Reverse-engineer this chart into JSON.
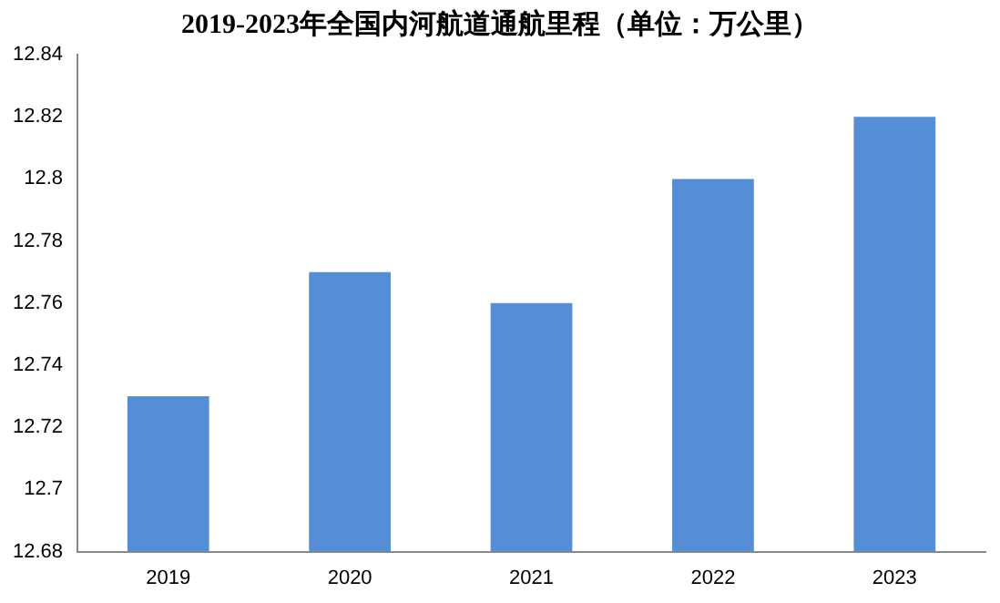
{
  "chart_data": {
    "type": "bar",
    "title": "2019-2023年全国内河航道通航里程（单位：万公里）",
    "categories": [
      "2019",
      "2020",
      "2021",
      "2022",
      "2023"
    ],
    "values": [
      12.73,
      12.77,
      12.76,
      12.8,
      12.82
    ],
    "color": "#558ed5",
    "ylim": [
      12.68,
      12.84
    ],
    "yticks": [
      12.68,
      12.7,
      12.72,
      12.74,
      12.76,
      12.78,
      12.8,
      12.82,
      12.84
    ],
    "grid": false,
    "legend": false
  }
}
